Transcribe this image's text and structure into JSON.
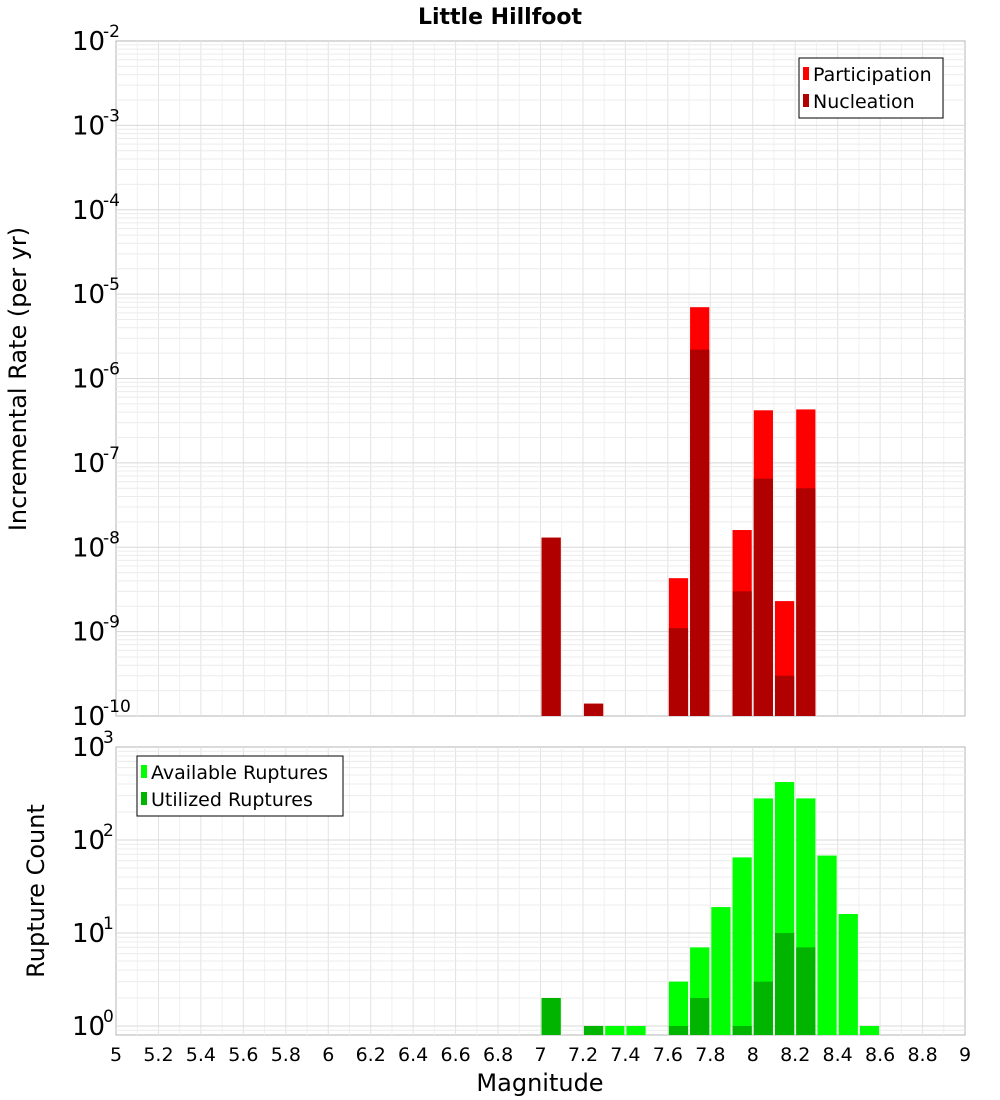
{
  "chart_data": [
    {
      "type": "bar",
      "title": "Little Hillfoot",
      "xlabel": "",
      "ylabel": "Incremental Rate (per yr)",
      "yscale": "log",
      "ylim": [
        1e-10,
        0.01
      ],
      "xlim": [
        5,
        9
      ],
      "grid": true,
      "legend_position": "top-right",
      "y_ticks": [
        {
          "base": "10",
          "exp": "-10",
          "value": 1e-10
        },
        {
          "base": "10",
          "exp": "-9",
          "value": 1e-09
        },
        {
          "base": "10",
          "exp": "-8",
          "value": 1e-08
        },
        {
          "base": "10",
          "exp": "-7",
          "value": 1e-07
        },
        {
          "base": "10",
          "exp": "-6",
          "value": 1e-06
        },
        {
          "base": "10",
          "exp": "-5",
          "value": 1e-05
        },
        {
          "base": "10",
          "exp": "-4",
          "value": 0.0001
        },
        {
          "base": "10",
          "exp": "-3",
          "value": 0.001
        },
        {
          "base": "10",
          "exp": "-2",
          "value": 0.01
        }
      ],
      "series": [
        {
          "name": "Participation",
          "color": "#ff0000",
          "points": [
            {
              "x": 7.05,
              "y": 1.3e-08
            },
            {
              "x": 7.25,
              "y": 1.4e-10
            },
            {
              "x": 7.65,
              "y": 4.3e-09
            },
            {
              "x": 7.75,
              "y": 7e-06
            },
            {
              "x": 7.95,
              "y": 1.6e-08
            },
            {
              "x": 8.05,
              "y": 4.2e-07
            },
            {
              "x": 8.15,
              "y": 2.3e-09
            },
            {
              "x": 8.25,
              "y": 4.3e-07
            }
          ]
        },
        {
          "name": "Nucleation",
          "color": "#b00000",
          "points": [
            {
              "x": 7.05,
              "y": 1.3e-08
            },
            {
              "x": 7.25,
              "y": 1.4e-10
            },
            {
              "x": 7.65,
              "y": 1.1e-09
            },
            {
              "x": 7.75,
              "y": 2.2e-06
            },
            {
              "x": 7.95,
              "y": 3e-09
            },
            {
              "x": 8.05,
              "y": 6.5e-08
            },
            {
              "x": 8.15,
              "y": 3e-10
            },
            {
              "x": 8.25,
              "y": 5e-08
            }
          ]
        }
      ]
    },
    {
      "type": "bar",
      "title": "",
      "xlabel": "Magnitude",
      "ylabel": "Rupture Count",
      "yscale": "log",
      "ylim": [
        0.8,
        1000
      ],
      "xlim": [
        5,
        9
      ],
      "grid": true,
      "legend_position": "top-left",
      "x_ticks": [
        "5",
        "5.2",
        "5.4",
        "5.6",
        "5.8",
        "6",
        "6.2",
        "6.4",
        "6.6",
        "6.8",
        "7",
        "7.2",
        "7.4",
        "7.6",
        "7.8",
        "8",
        "8.2",
        "8.4",
        "8.6",
        "8.8",
        "9"
      ],
      "y_ticks": [
        {
          "base": "10",
          "exp": "0",
          "value": 1
        },
        {
          "base": "10",
          "exp": "1",
          "value": 10
        },
        {
          "base": "10",
          "exp": "2",
          "value": 100
        },
        {
          "base": "10",
          "exp": "3",
          "value": 1000
        }
      ],
      "series": [
        {
          "name": "Available Ruptures",
          "color": "#00ff00",
          "points": [
            {
              "x": 7.05,
              "y": 2
            },
            {
              "x": 7.25,
              "y": 1
            },
            {
              "x": 7.35,
              "y": 1
            },
            {
              "x": 7.45,
              "y": 1
            },
            {
              "x": 7.65,
              "y": 3
            },
            {
              "x": 7.75,
              "y": 7
            },
            {
              "x": 7.85,
              "y": 19
            },
            {
              "x": 7.95,
              "y": 65
            },
            {
              "x": 8.05,
              "y": 280
            },
            {
              "x": 8.15,
              "y": 420
            },
            {
              "x": 8.25,
              "y": 280
            },
            {
              "x": 8.35,
              "y": 68
            },
            {
              "x": 8.45,
              "y": 16
            },
            {
              "x": 8.55,
              "y": 1
            }
          ]
        },
        {
          "name": "Utilized Ruptures",
          "color": "#00b400",
          "points": [
            {
              "x": 7.05,
              "y": 2
            },
            {
              "x": 7.25,
              "y": 1
            },
            {
              "x": 7.65,
              "y": 1
            },
            {
              "x": 7.75,
              "y": 2
            },
            {
              "x": 7.95,
              "y": 1
            },
            {
              "x": 8.05,
              "y": 3
            },
            {
              "x": 8.15,
              "y": 10
            },
            {
              "x": 8.25,
              "y": 7
            }
          ]
        }
      ]
    }
  ]
}
